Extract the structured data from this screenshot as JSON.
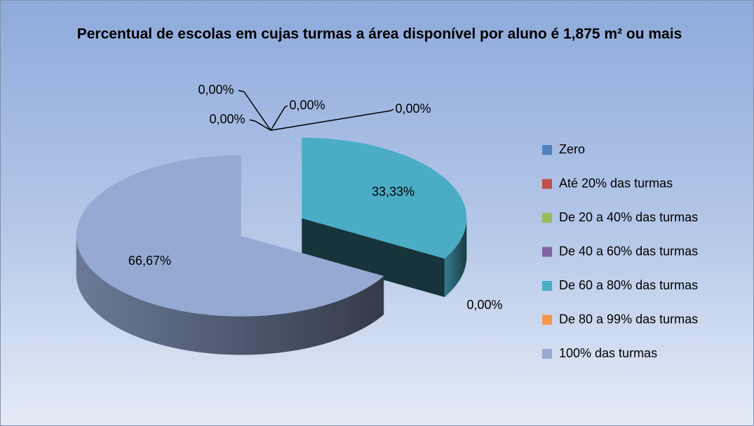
{
  "chart_data": {
    "type": "pie",
    "title": "Percentual de escolas em cujas turmas a área disponível por aluno é 1,875 m² ou mais",
    "categories": [
      "Zero",
      "Até 20% das turmas",
      "De 20 a 40% das turmas",
      "De 40 a 60% das turmas",
      "De 60 a 80% das turmas",
      "De 80 a 99% das turmas",
      "100% das turmas"
    ],
    "values": [
      0,
      0,
      0,
      0,
      33.33,
      0,
      66.67
    ],
    "value_labels": [
      "0,00%",
      "0,00%",
      "0,00%",
      "0,00%",
      "33,33%",
      "0,00%",
      "66,67%"
    ],
    "colors": [
      "#4f81bd",
      "#c0504d",
      "#9bbb59",
      "#8064a2",
      "#4bacc6",
      "#f79646",
      "#95a9d2"
    ],
    "legend": "right"
  }
}
